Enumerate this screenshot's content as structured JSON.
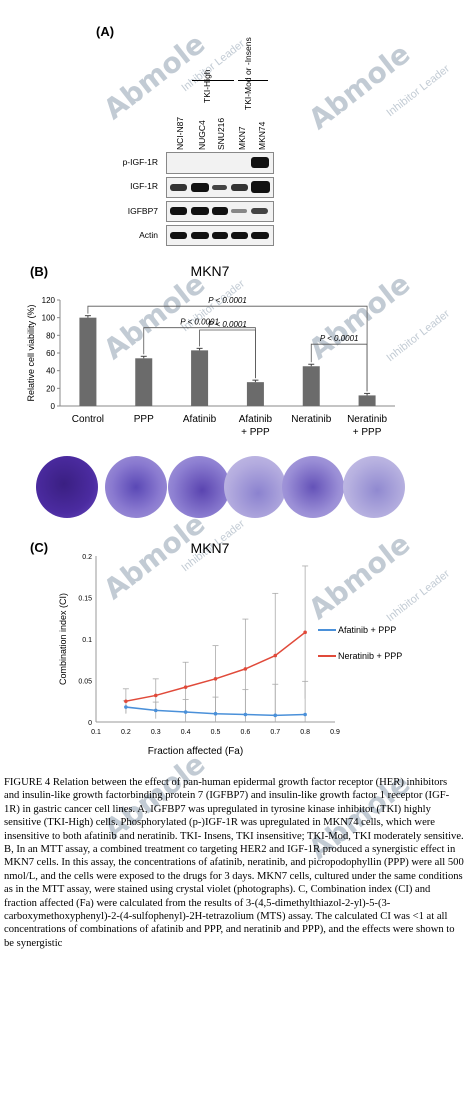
{
  "panel_a": {
    "label": "(A)",
    "group_high": "TKI-High",
    "group_mod": "TKI-Mod or -Insens",
    "lanes": [
      "NCI-N87",
      "NUGC4",
      "SNU216",
      "MKN7",
      "MKN74"
    ],
    "rows": [
      "p-IGF-1R",
      "IGF-1R",
      "IGFBP7",
      "Actin"
    ]
  },
  "panel_b": {
    "label": "(B)",
    "chart_data": {
      "type": "bar",
      "title": "MKN7",
      "ylabel": "Relative cell viability (%)",
      "categories": [
        "Control",
        "PPP",
        "Afatinib",
        "Afatinib\n+ PPP",
        "Neratinib",
        "Neratinib\n+ PPP"
      ],
      "values": [
        100,
        54,
        63,
        27,
        45,
        12
      ],
      "ylim": [
        0,
        120
      ],
      "yticks": [
        "0",
        "20",
        "40",
        "60",
        "80",
        "100",
        "120"
      ],
      "annotations": [
        "P < 0.0001",
        "P < 0.0001",
        "P < 0.0001",
        "P < 0.0001"
      ]
    }
  },
  "panel_c": {
    "label": "(C)",
    "chart_data": {
      "type": "line",
      "title": "MKN7",
      "xlabel": "Fraction affected (Fa)",
      "ylabel": "Combination index (CI)",
      "xlim": [
        0.1,
        0.9
      ],
      "ylim": [
        0,
        0.2
      ],
      "xticks": [
        "0.1",
        "0.2",
        "0.3",
        "0.4",
        "0.5",
        "0.6",
        "0.7",
        "0.8",
        "0.9"
      ],
      "yticks": [
        "0",
        "0.05",
        "0.1",
        "0.15",
        "0.2"
      ],
      "series": [
        {
          "name": "Afatinib + PPP",
          "color": "#4a90d9",
          "x": [
            0.2,
            0.3,
            0.4,
            0.5,
            0.6,
            0.7,
            0.8
          ],
          "y": [
            0.018,
            0.014,
            0.012,
            0.01,
            0.009,
            0.008,
            0.009
          ]
        },
        {
          "name": "Neratinib + PPP",
          "color": "#e04a3a",
          "x": [
            0.2,
            0.3,
            0.4,
            0.5,
            0.6,
            0.7,
            0.8
          ],
          "y": [
            0.025,
            0.032,
            0.042,
            0.052,
            0.064,
            0.08,
            0.108
          ]
        }
      ]
    }
  },
  "watermark": {
    "brand": "Abmole",
    "tag": "Inhibitor Leader"
  },
  "caption": "FIGURE 4 Relation between the effect of pan-human epidermal growth factor receptor (HER) inhibitors and insulin-like growth factorbinding protein 7 (IGFBP7) and insulin-like growth factor 1 receptor (IGF-1R) in gastric cancer cell lines. A, IGFBP7 was upregulated in tyrosine kinase inhibitor (TKI) highly sensitive (TKI-High) cells. Phosphorylated (p-)IGF-1R was upregulated in MKN74 cells, which were insensitive to both afatinib and neratinib. TKI- Insens, TKI insensitive; TKI-Mod, TKI moderately sensitive. B, In an MTT assay, a combined treatment co targeting HER2 and IGF-1R produced a synergistic effect in MKN7 cells. In this assay, the concentrations of afatinib, neratinib, and picropodophyllin (PPP) were all 500 nmol/L, and the cells were exposed to the drugs for 3 days. MKN7 cells, cultured under the same conditions as in the MTT assay, were stained using crystal violet (photographs). C, Combination index (CI) and fraction affected (Fa) were calculated from the results of 3-(4,5-dimethylthiazol-2-yl)-5-(3-carboxymethoxyphenyl)-2-(4-sulfophenyl)-2H-tetrazolium (MTS) assay. The calculated CI was <1 at all concentrations of combinations of afatinib and PPP, and neratinib and PPP), and the effects were shown to be synergistic"
}
